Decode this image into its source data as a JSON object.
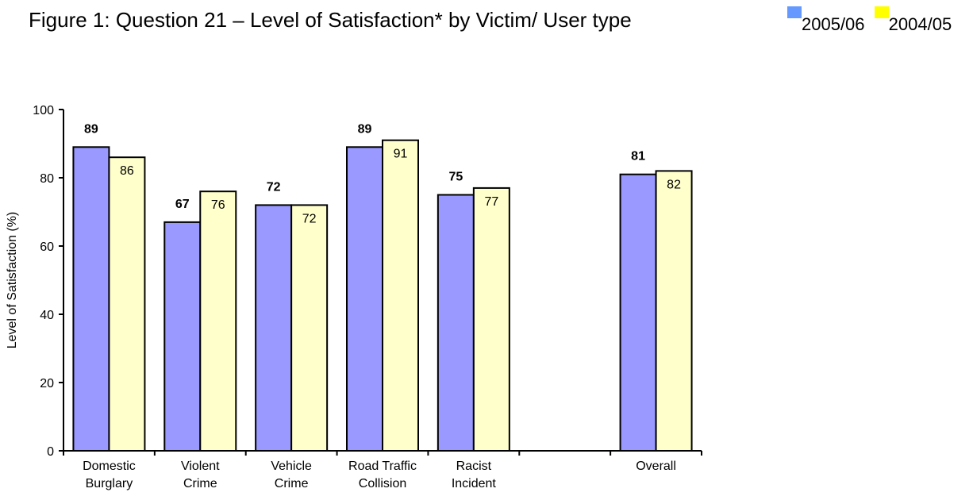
{
  "chart_data": {
    "type": "bar",
    "title": "Figure 1: Question 21 – Level of Satisfaction* by Victim/ User type",
    "ylabel": "Level of Satisfaction (%)",
    "xlabel": "",
    "ylim": [
      0,
      100
    ],
    "yticks": [
      0,
      20,
      40,
      60,
      80,
      100
    ],
    "categories": [
      [
        "Domestic",
        "Burglary"
      ],
      [
        "Violent",
        "Crime"
      ],
      [
        "Vehicle",
        "Crime"
      ],
      [
        "Road Traffic",
        "Collision"
      ],
      [
        "Racist",
        "Incident"
      ],
      [
        ""
      ],
      [
        "Overall"
      ]
    ],
    "series": [
      {
        "name": "2005/06",
        "values": [
          89,
          67,
          72,
          89,
          75,
          null,
          81
        ],
        "fill": "#9999ff",
        "legend_color": "#6699ff",
        "label_style": "bold"
      },
      {
        "name": "2004/05",
        "values": [
          86,
          76,
          72,
          91,
          77,
          null,
          82
        ],
        "fill": "#ffffcc",
        "legend_color": "#ffff00",
        "label_style": "regular"
      }
    ],
    "grid": false,
    "legend_position": "top-right"
  }
}
